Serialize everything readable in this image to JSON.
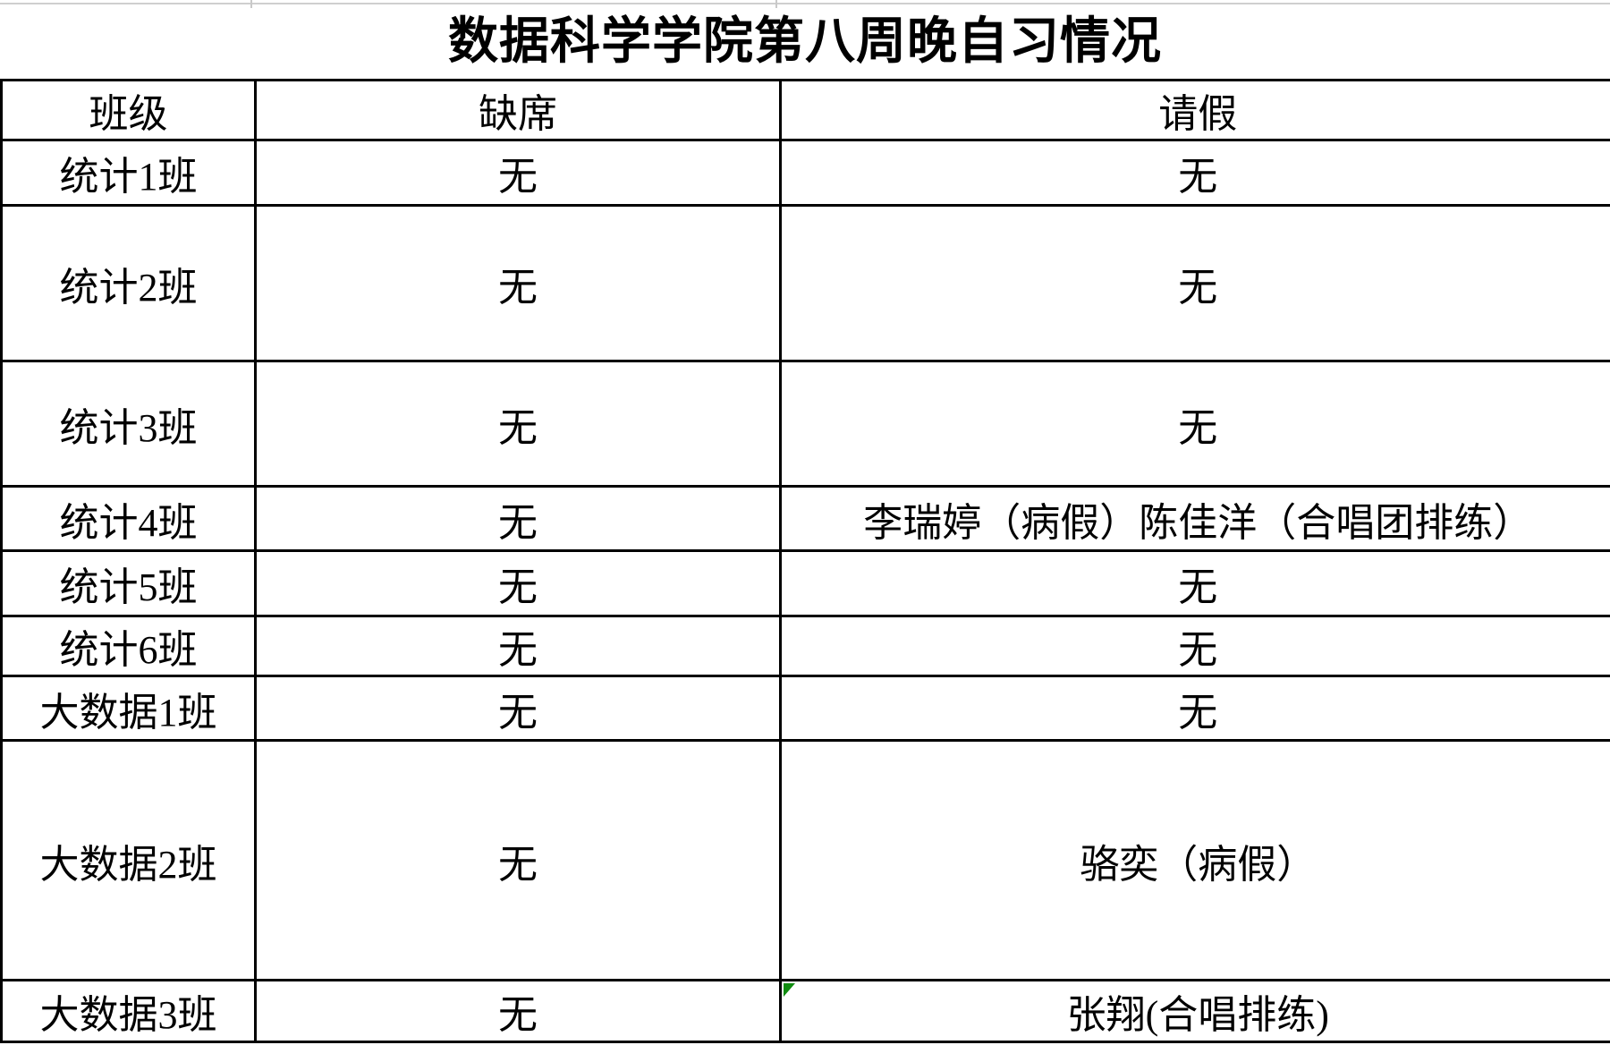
{
  "title": "数据科学学院第八周晚自习情况",
  "columns": [
    "班级",
    "缺席",
    "请假"
  ],
  "rows": [
    {
      "class_name": "统计1班",
      "absent": "无",
      "leave": "无"
    },
    {
      "class_name": "统计2班",
      "absent": "无",
      "leave": "无"
    },
    {
      "class_name": "统计3班",
      "absent": "无",
      "leave": "无"
    },
    {
      "class_name": "统计4班",
      "absent": "无",
      "leave": "李瑞婷（病假）陈佳洋（合唱团排练）"
    },
    {
      "class_name": "统计5班",
      "absent": "无",
      "leave": "无"
    },
    {
      "class_name": "统计6班",
      "absent": "无",
      "leave": "无"
    },
    {
      "class_name": "大数据1班",
      "absent": "无",
      "leave": "无"
    },
    {
      "class_name": "大数据2班",
      "absent": "无",
      "leave": "骆奕（病假）"
    },
    {
      "class_name": "大数据3班",
      "absent": "无",
      "leave": "张翔(合唱排练)",
      "cell_flag": "green-corner-triangle"
    }
  ],
  "colors": {
    "text": "#000000",
    "table_border": "#000000",
    "top_gridline": "#cfcfcf",
    "flag_green": "#108C10",
    "background": "#ffffff"
  }
}
